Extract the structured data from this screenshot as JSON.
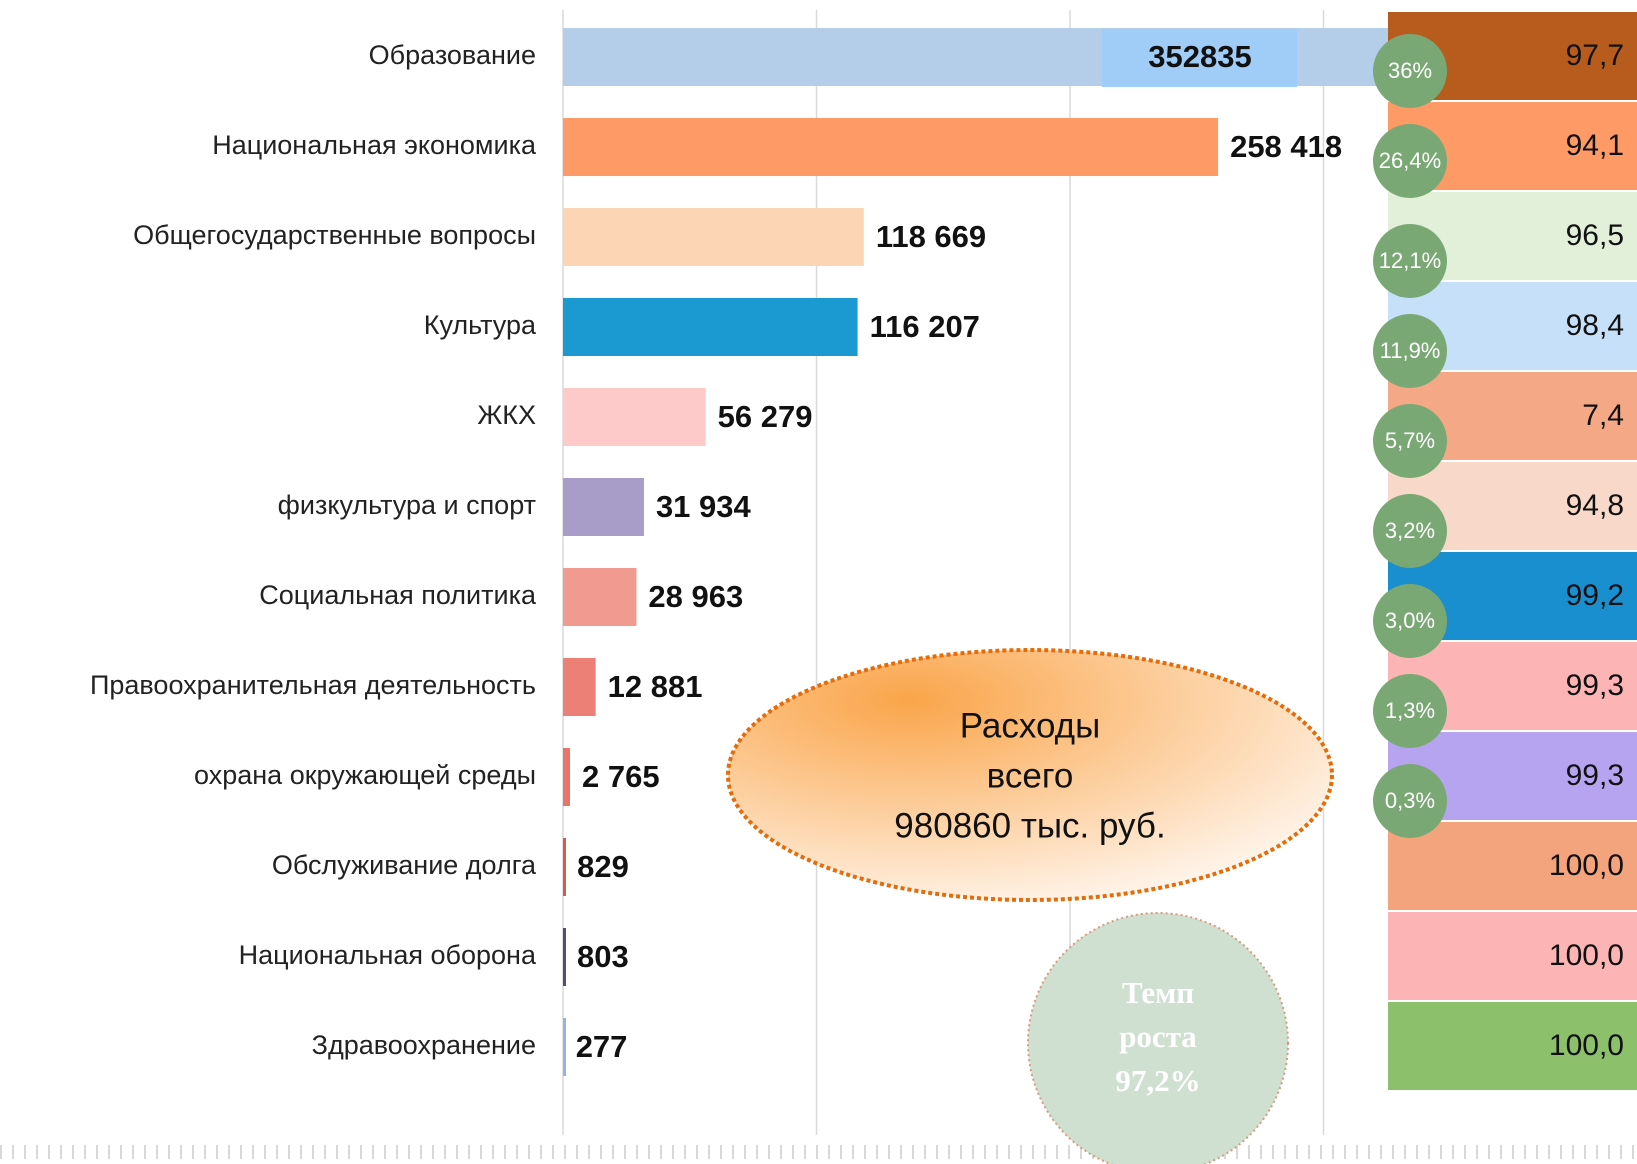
{
  "chart_data": {
    "type": "bar",
    "orientation": "horizontal",
    "categories": [
      "Образование",
      "Национальная экономика",
      "Общегосударственные вопросы",
      "Культура",
      "ЖКХ",
      "физкультура и спорт",
      "Социальная политика",
      "Правоохранительная деятельность",
      "охрана окружающей среды",
      "Обслуживание долга",
      "Национальная оборона",
      "Здравоохранение"
    ],
    "values": [
      352835,
      258418,
      118669,
      116207,
      56279,
      31934,
      28963,
      12881,
      2765,
      829,
      803,
      277
    ],
    "value_labels": [
      "352835",
      "258 418",
      "118 669",
      "116 207",
      "56 279",
      "31 934",
      "28 963",
      "12 881",
      "2 765",
      "829",
      "803",
      "277"
    ],
    "colors": [
      "#b4cde9",
      "#fe9a66",
      "#fcd5b4",
      "#1a9ad0",
      "#fdc9c9",
      "#a89cc8",
      "#f09a90",
      "#ec8076",
      "#e8746a",
      "#d85a4a",
      "#5a4a7a",
      "#9ab0e8"
    ],
    "xlim": [
      0,
      400000
    ],
    "xticks": [
      0,
      100000,
      200000,
      300000
    ],
    "grid": true,
    "shares": {
      "values": [
        36,
        26.4,
        12.1,
        11.9,
        5.7,
        3.2,
        3.0,
        1.3,
        0.3
      ],
      "value_labels": [
        "36%",
        "26,4%",
        "12,1%",
        "11,9%",
        "5,7%",
        "3,2%",
        "3,0%",
        "1,3%",
        "0,3%"
      ],
      "color": "#7aa874"
    },
    "rates": {
      "values": [
        97.7,
        94.1,
        96.5,
        98.4,
        7.4,
        94.8,
        99.2,
        99.3,
        99.3,
        100.0,
        100.0,
        100.0
      ],
      "value_labels": [
        "97,7",
        "94,1",
        "96,5",
        "98,4",
        "7,4",
        "94,8",
        "99,2",
        "99,3",
        "99,3",
        "100,0",
        "100,0",
        "100,0"
      ],
      "colors": [
        "#b85c1e",
        "#fe9a66",
        "#e2efd9",
        "#c5e0f8",
        "#f4a886",
        "#f8d9c9",
        "#1a8fd0",
        "#fcb4b4",
        "#b6a4f0",
        "#f4a47c",
        "#fcb4b4",
        "#8dc06a"
      ]
    },
    "annotations": [
      [
        "Расходы",
        "всего",
        "980860 тыс. руб."
      ],
      [
        "Темп",
        "роста",
        "97,2%"
      ]
    ]
  }
}
